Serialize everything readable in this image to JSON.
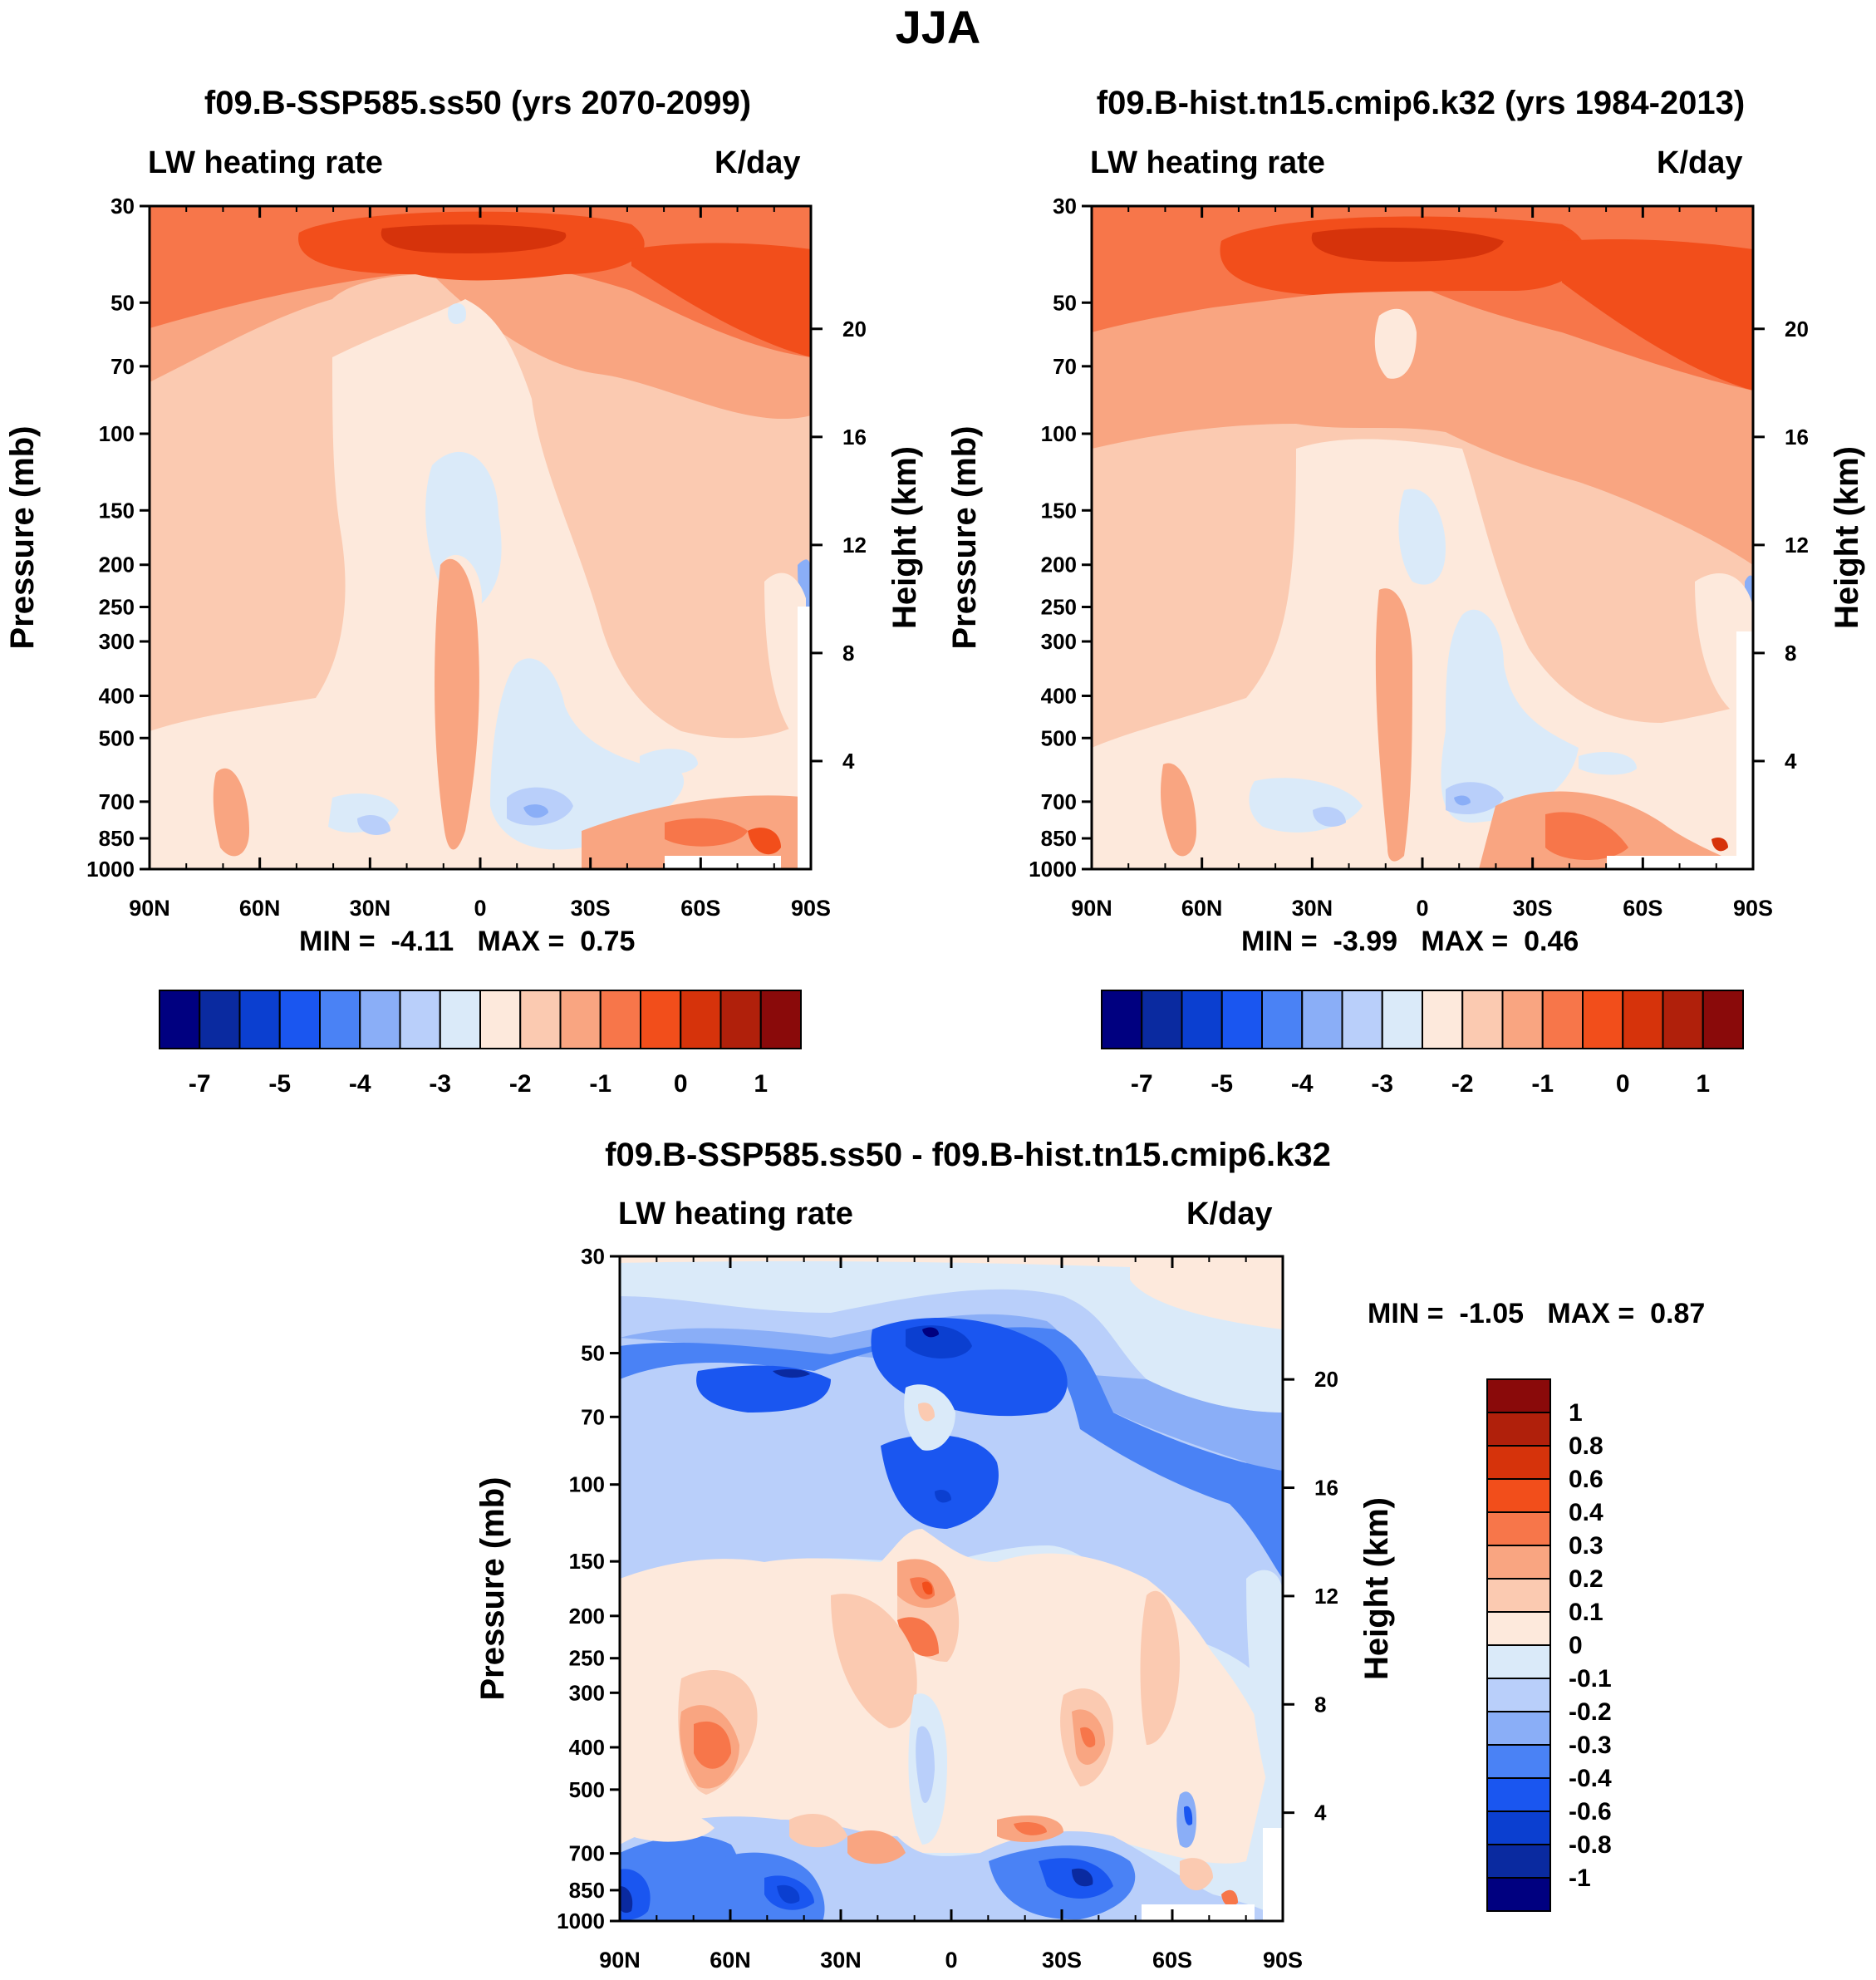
{
  "figure": {
    "title": "JJA"
  },
  "colors": {
    "abs_scale": [
      "#000080",
      "#0a2aa0",
      "#0b3fd0",
      "#1a56f0",
      "#4a82f5",
      "#8aaef7",
      "#b9cffa",
      "#daeaf9",
      "#fde9dc",
      "#fbcab1",
      "#f9a581",
      "#f7764a",
      "#f24e1b",
      "#d6330b",
      "#b0200b",
      "#8a0a0a"
    ],
    "diff_scale": [
      "#000080",
      "#0a2aa0",
      "#0b3fd0",
      "#1a56f0",
      "#4a82f5",
      "#8aaef7",
      "#b9cffa",
      "#daeaf9",
      "#fde9dc",
      "#fbcab1",
      "#f9a581",
      "#f7764a",
      "#f24e1b",
      "#d6330b",
      "#b0200b",
      "#8a0a0a"
    ]
  },
  "chart_data": [
    {
      "type": "heatmap",
      "title": "f09.B-SSP585.ss50 (yrs 2070-2099)",
      "subtitle_left": "LW heating rate",
      "subtitle_right": "K/day",
      "xlabel": "",
      "ylabel": "Pressure (mb)",
      "y2label": "Height (km)",
      "x_ticks": [
        "90N",
        "60N",
        "30N",
        "0",
        "30S",
        "60S",
        "90S"
      ],
      "y_ticks": [
        30,
        50,
        70,
        100,
        150,
        200,
        250,
        300,
        400,
        500,
        700,
        850,
        1000
      ],
      "y2_ticks": [
        20,
        16,
        12,
        8,
        4
      ],
      "stats": {
        "min_label": "MIN =",
        "min": "-4.11",
        "max_label": "MAX =",
        "max": "0.75"
      },
      "colorbar": {
        "orientation": "horizontal",
        "labels": [
          "-7",
          "-5",
          "-4",
          "-3",
          "-2",
          "-1",
          "0",
          "1"
        ]
      }
    },
    {
      "type": "heatmap",
      "title": "f09.B-hist.tn15.cmip6.k32 (yrs 1984-2013)",
      "subtitle_left": "LW heating rate",
      "subtitle_right": "K/day",
      "xlabel": "",
      "ylabel": "Pressure (mb)",
      "y2label": "Height (km)",
      "x_ticks": [
        "90N",
        "60N",
        "30N",
        "0",
        "30S",
        "60S",
        "90S"
      ],
      "y_ticks": [
        30,
        50,
        70,
        100,
        150,
        200,
        250,
        300,
        400,
        500,
        700,
        850,
        1000
      ],
      "y2_ticks": [
        20,
        16,
        12,
        8,
        4
      ],
      "stats": {
        "min_label": "MIN =",
        "min": "-3.99",
        "max_label": "MAX =",
        "max": "0.46"
      },
      "colorbar": {
        "orientation": "horizontal",
        "labels": [
          "-7",
          "-5",
          "-4",
          "-3",
          "-2",
          "-1",
          "0",
          "1"
        ]
      }
    },
    {
      "type": "heatmap",
      "title": "f09.B-SSP585.ss50 - f09.B-hist.tn15.cmip6.k32",
      "subtitle_left": "LW heating rate",
      "subtitle_right": "K/day",
      "xlabel": "",
      "ylabel": "Pressure (mb)",
      "y2label": "Height (km)",
      "x_ticks": [
        "90N",
        "60N",
        "30N",
        "0",
        "30S",
        "60S",
        "90S"
      ],
      "y_ticks": [
        30,
        50,
        70,
        100,
        150,
        200,
        250,
        300,
        400,
        500,
        700,
        850,
        1000
      ],
      "y2_ticks": [
        20,
        16,
        12,
        8,
        4
      ],
      "stats": {
        "min_label": "MIN =",
        "min": "-1.05",
        "max_label": "MAX =",
        "max": "0.87"
      },
      "colorbar": {
        "orientation": "vertical",
        "labels": [
          "1",
          "0.8",
          "0.6",
          "0.4",
          "0.3",
          "0.2",
          "0.1",
          "0",
          "-0.1",
          "-0.2",
          "-0.3",
          "-0.4",
          "-0.6",
          "-0.8",
          "-1"
        ]
      }
    }
  ]
}
